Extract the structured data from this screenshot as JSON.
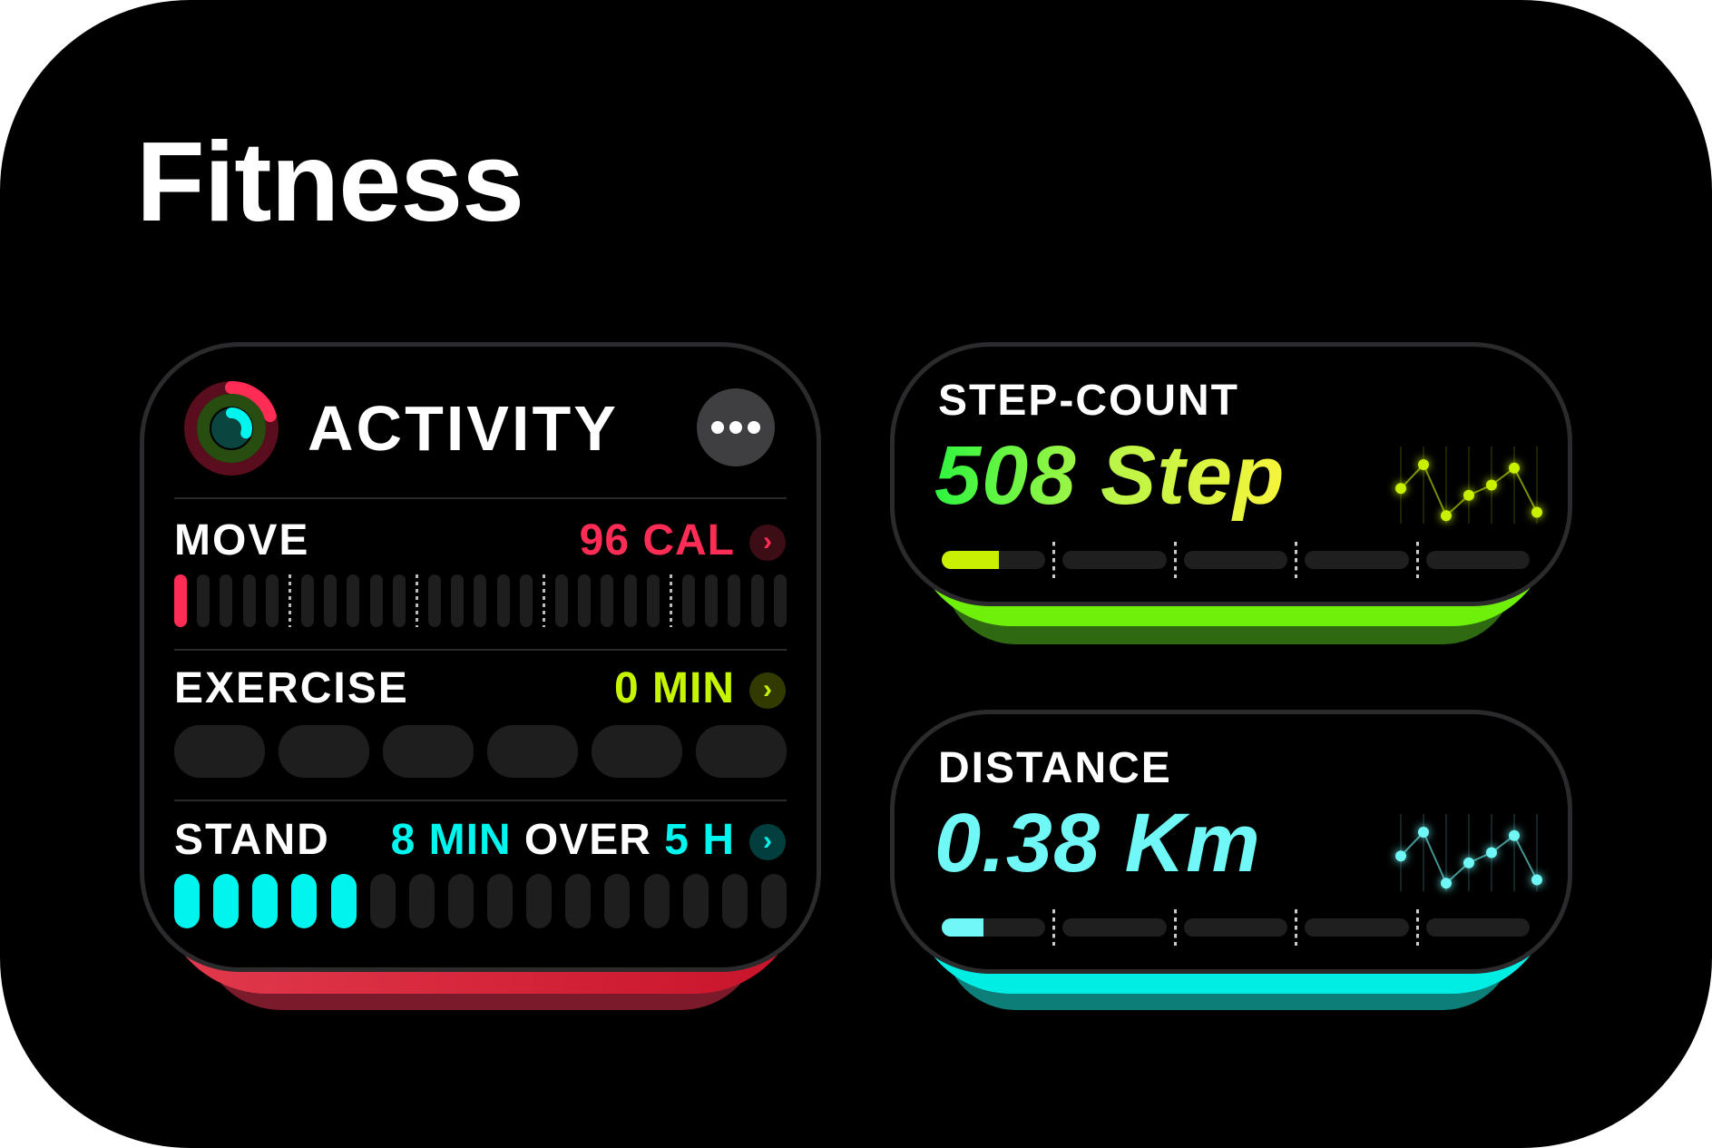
{
  "title": "Fitness",
  "activity": {
    "title": "ACTIVITY",
    "more_icon": "ellipsis-icon",
    "rings": {
      "move": 0.2,
      "exercise": 0.0,
      "stand": 0.3
    },
    "colors": {
      "move": "#ff2d55",
      "exercise": "#c5f500",
      "stand": "#00f5ee",
      "base": "#d9273e"
    },
    "move": {
      "label": "MOVE",
      "value": "96 CAL",
      "bars_total": 25,
      "bars_filled": 1
    },
    "exercise": {
      "label": "EXERCISE",
      "value": "0 MIN",
      "pills_total": 6,
      "pills_filled": 0
    },
    "stand": {
      "label": "STAND",
      "value_a": "8 MIN",
      "value_mid": "OVER",
      "value_b": "5 H",
      "bars_total": 16,
      "bars_filled": 5
    }
  },
  "steps": {
    "title": "STEP-COUNT",
    "value": "508 Step",
    "progress": 0.11,
    "color": "#c8f000",
    "base_color": "#6ef00a",
    "sparkline": [
      0.45,
      0.8,
      0.05,
      0.35,
      0.5,
      0.75,
      0.1
    ]
  },
  "distance": {
    "title": "DISTANCE",
    "value": "0.38 Km",
    "progress": 0.08,
    "color": "#6ff8f5",
    "base_color": "#00ede4",
    "sparkline": [
      0.45,
      0.8,
      0.05,
      0.35,
      0.5,
      0.75,
      0.1
    ]
  }
}
